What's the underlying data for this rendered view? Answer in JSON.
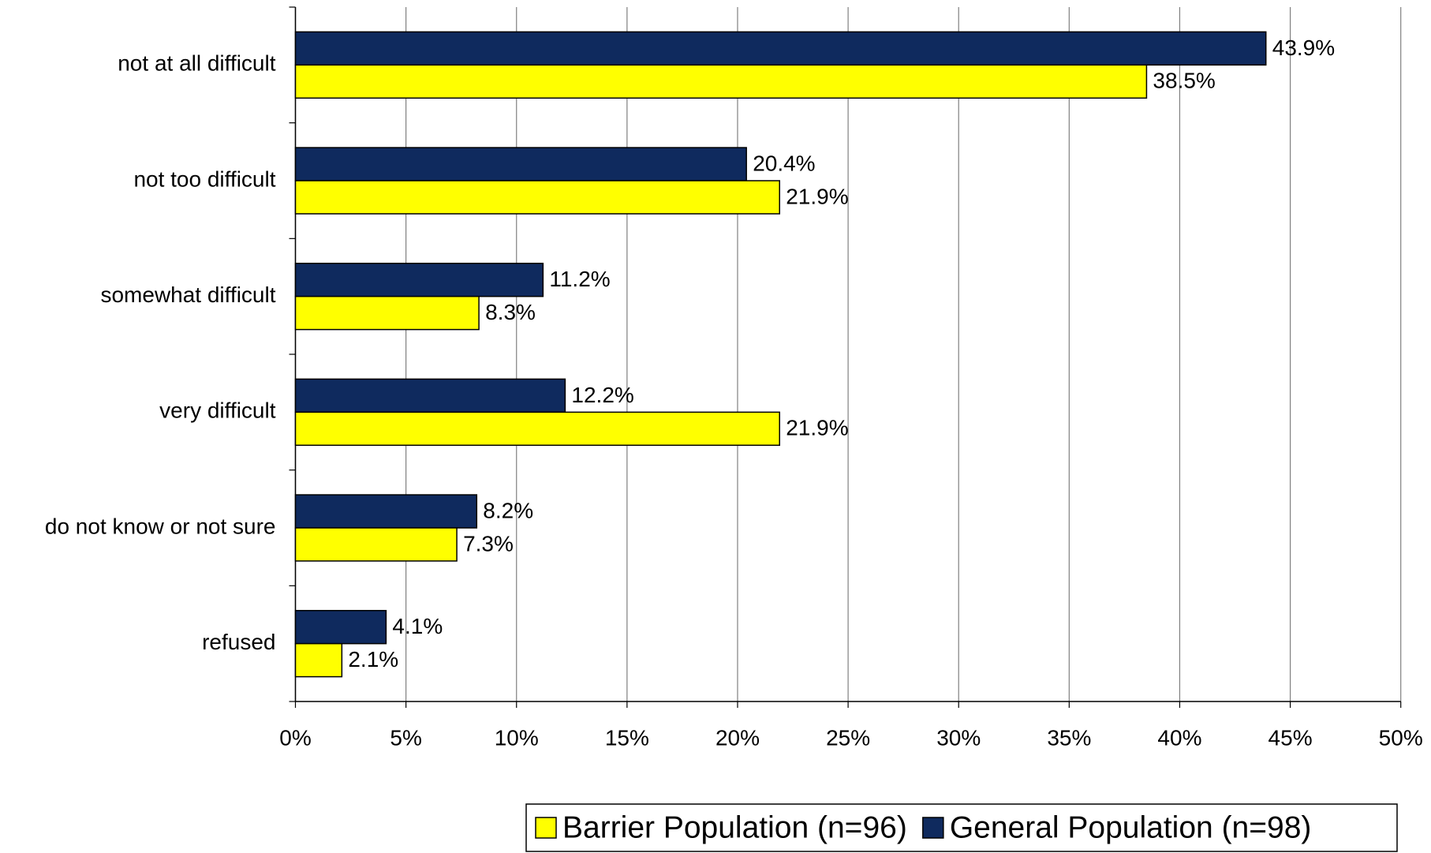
{
  "chart_data": {
    "type": "bar",
    "orientation": "horizontal",
    "categories": [
      "not at all difficult",
      "not too difficult",
      "somewhat difficult",
      "very difficult",
      "do not know or not sure",
      "refused"
    ],
    "series": [
      {
        "name": "General Population (n=98)",
        "color": "#0f2a5e",
        "values": [
          43.9,
          20.4,
          11.2,
          12.2,
          8.2,
          4.1
        ],
        "value_labels": [
          "43.9%",
          "20.4%",
          "11.2%",
          "12.2%",
          "8.2%",
          "4.1%"
        ]
      },
      {
        "name": "Barrier Population (n=96)",
        "color": "#ffff00",
        "values": [
          38.5,
          21.9,
          8.3,
          21.9,
          7.3,
          2.1
        ],
        "value_labels": [
          "38.5%",
          "21.9%",
          "8.3%",
          "21.9%",
          "7.3%",
          "2.1%"
        ]
      }
    ],
    "legend_order": [
      1,
      0
    ],
    "xlim": [
      0,
      50
    ],
    "xticks": [
      {
        "value": 0,
        "label": "0%"
      },
      {
        "value": 5,
        "label": "5%"
      },
      {
        "value": 10,
        "label": "10%"
      },
      {
        "value": 15,
        "label": "15%"
      },
      {
        "value": 20,
        "label": "20%"
      },
      {
        "value": 25,
        "label": "25%"
      },
      {
        "value": 30,
        "label": "30%"
      },
      {
        "value": 35,
        "label": "35%"
      },
      {
        "value": 40,
        "label": "40%"
      },
      {
        "value": 45,
        "label": "45%"
      },
      {
        "value": 50,
        "label": "50%"
      }
    ],
    "grid": true,
    "legend": "bottom-right"
  }
}
